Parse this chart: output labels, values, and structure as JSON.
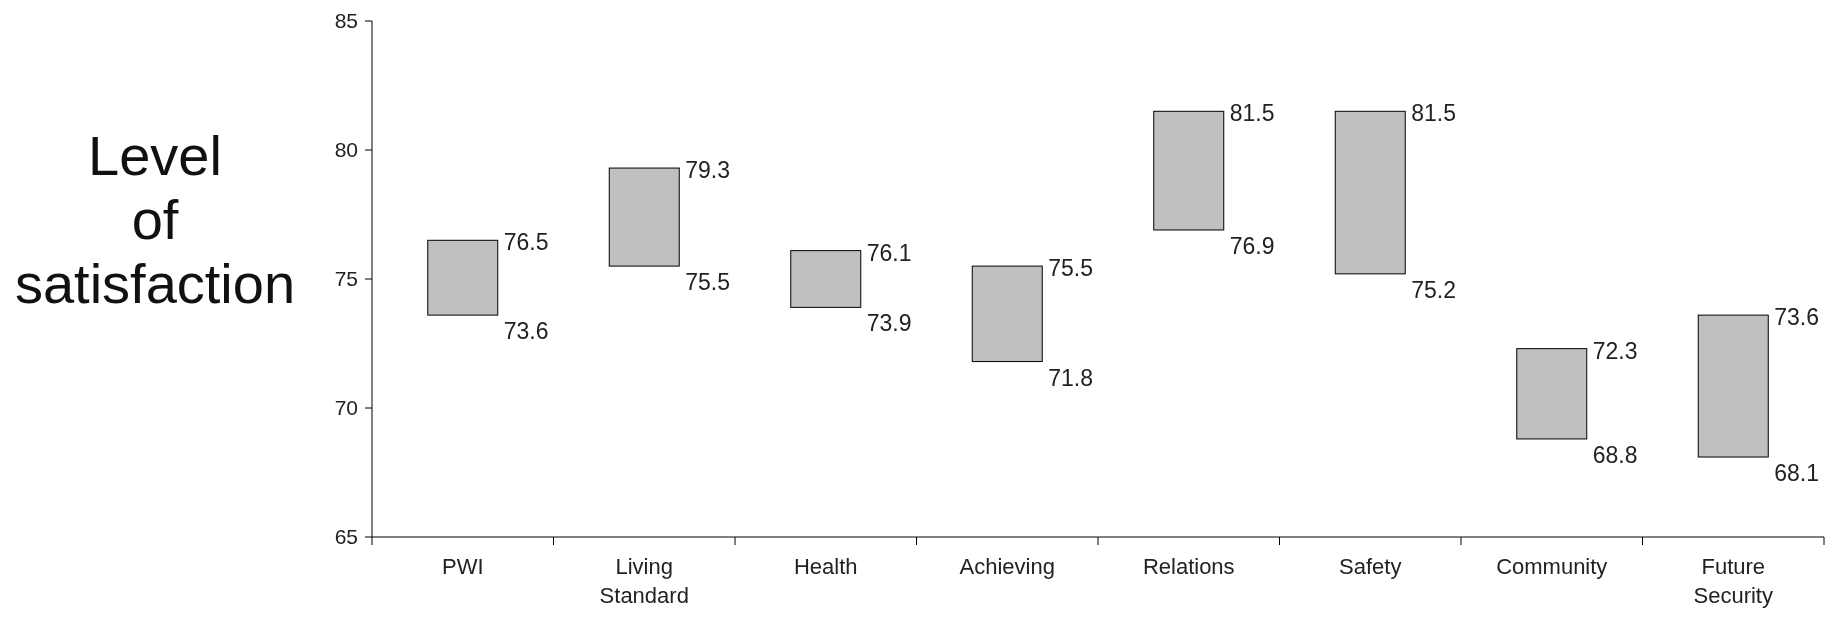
{
  "chart_data": {
    "type": "bar",
    "ylabel": "Level of satisfaction",
    "categories": [
      "PWI",
      "Living Standard",
      "Health",
      "Achieving",
      "Relations",
      "Safety",
      "Community",
      "Future Security"
    ],
    "base": [
      73.6,
      75.5,
      73.9,
      71.8,
      76.9,
      75.2,
      68.8,
      68.1
    ],
    "values": [
      2.9,
      3.8,
      2.2,
      3.7,
      4.6,
      6.3,
      3.5,
      5.5
    ],
    "color": "#c0c0c0",
    "ylim": [
      65,
      85
    ],
    "yticks": [
      65,
      70,
      75,
      80,
      85
    ],
    "grid": false,
    "annotations": [
      {
        "text": "76.5",
        "x": "PWI",
        "y": 76.5
      },
      {
        "text": "73.6",
        "x": "PWI",
        "y": 73.6
      },
      {
        "text": "79.3",
        "x": "Living Standard",
        "y": 79.3
      },
      {
        "text": "75.5",
        "x": "Living Standard",
        "y": 75.5
      },
      {
        "text": "76.1",
        "x": "Health",
        "y": 76.1
      },
      {
        "text": "73.9",
        "x": "Health",
        "y": 73.9
      },
      {
        "text": "75.5",
        "x": "Achieving",
        "y": 75.5
      },
      {
        "text": "71.8",
        "x": "Achieving",
        "y": 71.8
      },
      {
        "text": "81.5",
        "x": "Relations",
        "y": 81.5
      },
      {
        "text": "76.9",
        "x": "Relations",
        "y": 76.9
      },
      {
        "text": "81.5",
        "x": "Safety",
        "y": 81.5
      },
      {
        "text": "75.2",
        "x": "Safety",
        "y": 75.2
      },
      {
        "text": "72.3",
        "x": "Community",
        "y": 72.3
      },
      {
        "text": "68.8",
        "x": "Community",
        "y": 68.8
      },
      {
        "text": "73.6",
        "x": "Future Security",
        "y": 73.6
      },
      {
        "text": "68.1",
        "x": "Future Security",
        "y": 68.1
      }
    ]
  }
}
